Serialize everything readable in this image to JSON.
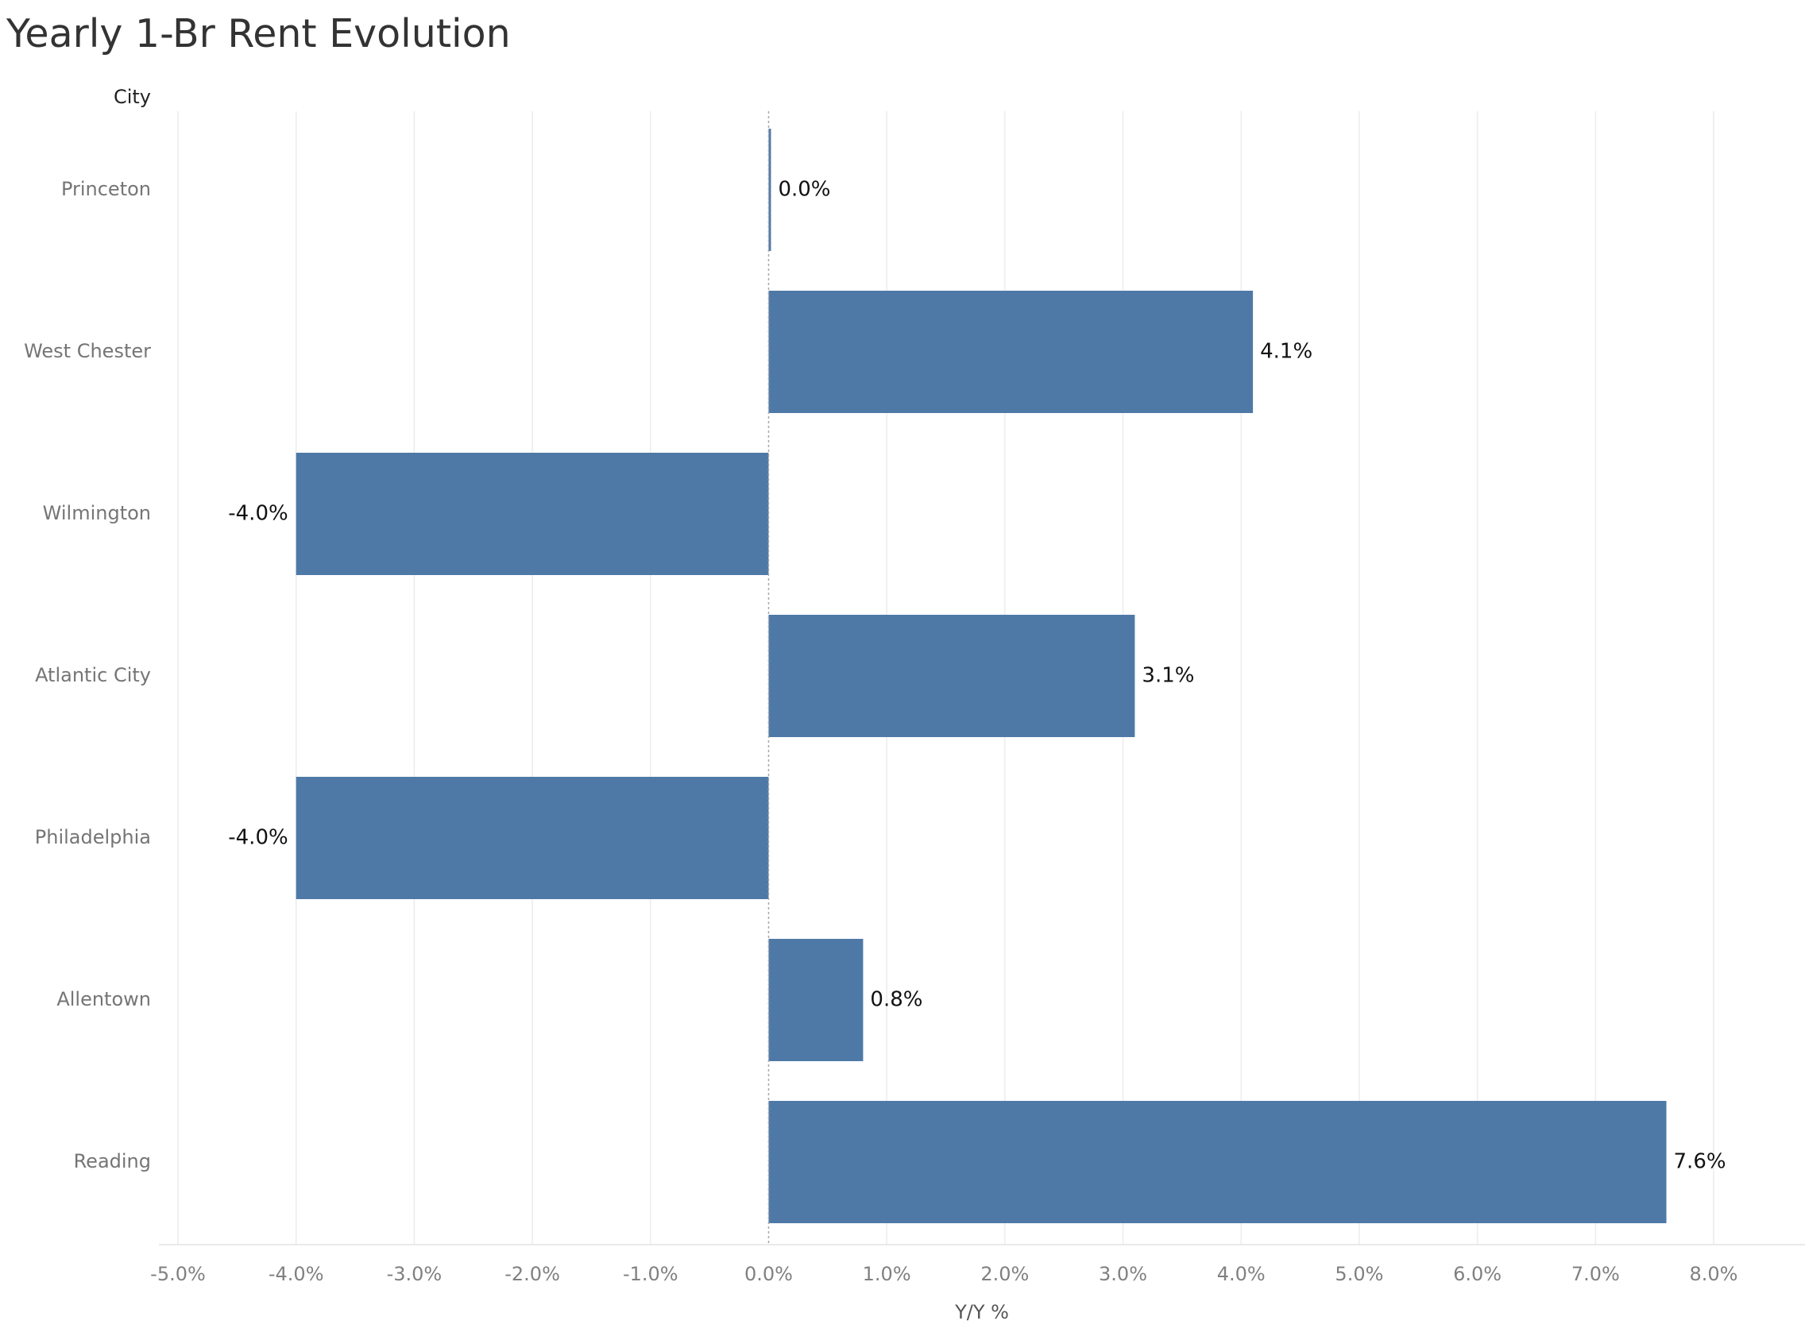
{
  "chart_data": {
    "type": "bar",
    "orientation": "horizontal",
    "title": "Yearly 1-Br Rent Evolution",
    "ylabel": "City",
    "xlabel": "Y/Y %",
    "categories": [
      "Princeton",
      "West Chester",
      "Wilmington",
      "Atlantic City",
      "Philadelphia",
      "Allentown",
      "Reading"
    ],
    "values": [
      0.0,
      4.1,
      -4.0,
      3.1,
      -4.0,
      0.8,
      7.6
    ],
    "data_labels": [
      "0.0%",
      "4.1%",
      "-4.0%",
      "3.1%",
      "-4.0%",
      "0.8%",
      "7.6%"
    ],
    "xlim": [
      -5.0,
      8.0
    ],
    "x_ticks": [
      -5,
      -4,
      -3,
      -2,
      -1,
      0,
      1,
      2,
      3,
      4,
      5,
      6,
      7,
      8
    ],
    "x_tick_labels": [
      "-5.0%",
      "-4.0%",
      "-3.0%",
      "-2.0%",
      "-1.0%",
      "0.0%",
      "1.0%",
      "2.0%",
      "3.0%",
      "4.0%",
      "5.0%",
      "6.0%",
      "7.0%",
      "8.0%"
    ],
    "grid": true,
    "legend": "none",
    "bar_color": "#4e79a7"
  }
}
